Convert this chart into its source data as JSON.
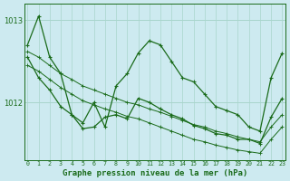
{
  "title": "Graphe pression niveau de la mer (hPa)",
  "bg_color": "#cdeaf0",
  "grid_color": "#a8d5cc",
  "line_color": "#1a6b1a",
  "hours": [
    0,
    1,
    2,
    3,
    4,
    5,
    6,
    7,
    8,
    9,
    10,
    11,
    12,
    13,
    14,
    15,
    16,
    17,
    18,
    19,
    20,
    21,
    22,
    23
  ],
  "jagged1": [
    1012.7,
    1013.05,
    1012.55,
    1012.35,
    1011.85,
    1011.75,
    1012.0,
    1011.7,
    1012.2,
    1012.35,
    1012.6,
    1012.75,
    1012.7,
    1012.5,
    1012.3,
    1012.25,
    1012.1,
    1011.95,
    1011.9,
    1011.85,
    1011.7,
    1011.65,
    1012.3,
    1012.6
  ],
  "jagged2": [
    1012.55,
    1012.3,
    1012.15,
    1011.95,
    1011.85,
    1011.68,
    1011.7,
    1011.82,
    1011.85,
    1011.8,
    1012.05,
    1012.0,
    1011.92,
    1011.85,
    1011.8,
    1011.72,
    1011.68,
    1011.62,
    1011.6,
    1011.55,
    1011.55,
    1011.5,
    1011.82,
    1012.05
  ],
  "trend1": [
    1012.62,
    1012.55,
    1012.45,
    1012.35,
    1012.28,
    1012.2,
    1012.15,
    1012.1,
    1012.05,
    1012.0,
    1011.97,
    1011.92,
    1011.88,
    1011.83,
    1011.78,
    1011.73,
    1011.7,
    1011.65,
    1011.62,
    1011.58,
    1011.55,
    1011.52,
    1011.7,
    1011.85
  ],
  "trend2": [
    1012.45,
    1012.38,
    1012.28,
    1012.18,
    1012.1,
    1012.02,
    1011.97,
    1011.92,
    1011.88,
    1011.83,
    1011.8,
    1011.75,
    1011.7,
    1011.65,
    1011.6,
    1011.55,
    1011.52,
    1011.48,
    1011.45,
    1011.42,
    1011.4,
    1011.38,
    1011.55,
    1011.7
  ],
  "ylim": [
    1011.3,
    1013.2
  ],
  "yticks": [
    1012,
    1013
  ],
  "figsize": [
    3.2,
    2.0
  ],
  "dpi": 100
}
